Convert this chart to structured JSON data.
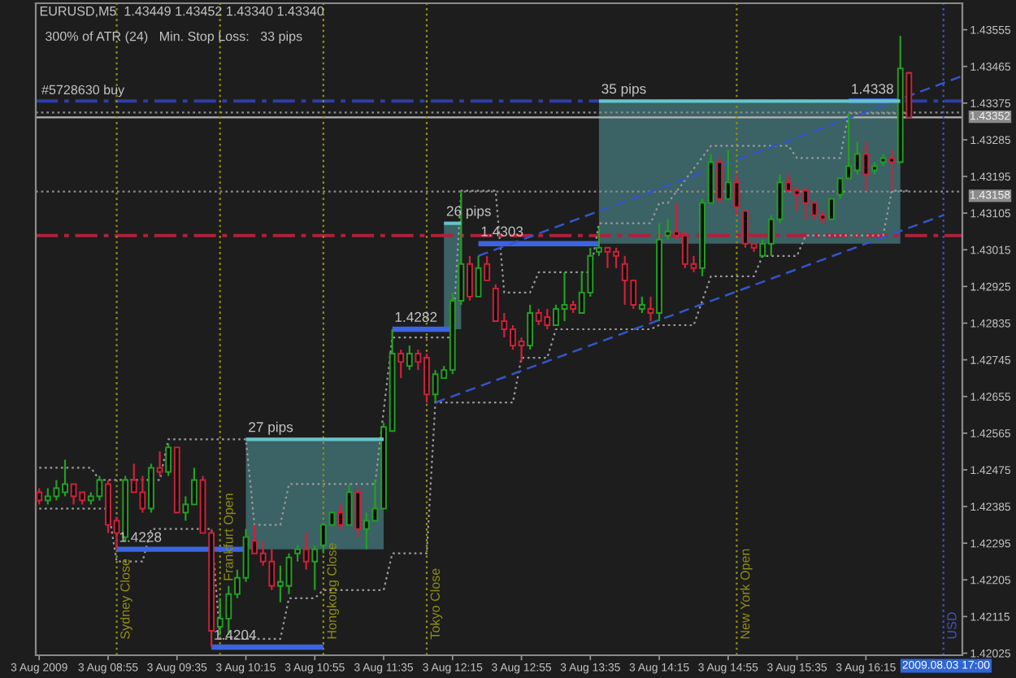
{
  "chart_data": {
    "type": "candlestick",
    "title": "EURUSD,M5  1.43449 1.43452 1.43340 1.43340",
    "subtitle": "300% of ATR (24)   Min. Stop Loss:   33 pips",
    "xlim": [
      "2009-08-03T08:13",
      "2009-08-03T17:11"
    ],
    "ylim": [
      1.4202,
      1.4362
    ],
    "xticks": [
      {
        "value": "2009-08-03T08:15",
        "label": "3 Aug 2009"
      },
      {
        "value": "2009-08-03T08:55",
        "label": "3 Aug 08:55"
      },
      {
        "value": "2009-08-03T09:35",
        "label": "3 Aug 09:35"
      },
      {
        "value": "2009-08-03T10:15",
        "label": "3 Aug 10:15"
      },
      {
        "value": "2009-08-03T10:55",
        "label": "3 Aug 10:55"
      },
      {
        "value": "2009-08-03T11:35",
        "label": "3 Aug 11:35"
      },
      {
        "value": "2009-08-03T12:15",
        "label": "3 Aug 12:15"
      },
      {
        "value": "2009-08-03T12:55",
        "label": "3 Aug 12:55"
      },
      {
        "value": "2009-08-03T13:35",
        "label": "3 Aug 13:35"
      },
      {
        "value": "2009-08-03T14:15",
        "label": "3 Aug 14:15"
      },
      {
        "value": "2009-08-03T14:55",
        "label": "3 Aug 14:55"
      },
      {
        "value": "2009-08-03T15:35",
        "label": "3 Aug 15:35"
      },
      {
        "value": "2009-08-03T16:15",
        "label": "3 Aug 16:15"
      }
    ],
    "yticks": [
      1.42025,
      1.42115,
      1.42205,
      1.42295,
      1.42385,
      1.42475,
      1.42565,
      1.42655,
      1.42745,
      1.42835,
      1.42925,
      1.43015,
      1.43105,
      1.43195,
      1.43285,
      1.43375,
      1.43465,
      1.43555
    ],
    "series": [
      {
        "type": "line",
        "name": "27 pips",
        "color": "#66c4c8",
        "line_style": "solid",
        "x": [
          "2009-08-03T10:15",
          "2009-08-03T11:35"
        ],
        "values": [
          1.4255,
          1.4255
        ],
        "lower": [
          1.4228,
          1.4228
        ],
        "upper": [
          1.4255,
          1.4255
        ]
      },
      {
        "type": "line",
        "name": "26 pips",
        "color": "#66c4c8",
        "line_style": "solid",
        "x": [
          "2009-08-03T12:10",
          "2009-08-03T12:20"
        ],
        "values": [
          1.4308,
          1.4308
        ],
        "lower": [
          1.4282,
          1.4282
        ],
        "upper": [
          1.4308,
          1.4308
        ]
      },
      {
        "type": "line",
        "name": "35 pips",
        "color": "#66c4c8",
        "line_style": "solid",
        "x": [
          "2009-08-03T13:40",
          "2009-08-03T16:35"
        ],
        "values": [
          1.4338,
          1.4338
        ],
        "lower": [
          1.4303,
          1.4303
        ],
        "upper": [
          1.4338,
          1.4338
        ]
      },
      {
        "type": "line",
        "color": "#9a9a9a",
        "line_style": "dotted",
        "x": [
          "2009-08-03T08:15",
          "2009-08-03T08:45",
          "2009-08-03T08:50",
          "2009-08-03T09:25",
          "2009-08-03T09:30",
          "2009-08-03T10:15",
          "2009-08-03T10:20",
          "2009-08-03T10:35",
          "2009-08-03T10:40",
          "2009-08-03T11:30",
          "2009-08-03T11:40",
          "2009-08-03T12:15",
          "2009-08-03T12:20",
          "2009-08-03T12:40",
          "2009-08-03T12:45",
          "2009-08-03T13:00",
          "2009-08-03T13:05",
          "2009-08-03T13:35",
          "2009-08-03T13:40",
          "2009-08-03T14:10",
          "2009-08-03T14:15",
          "2009-08-03T14:20",
          "2009-08-03T14:45",
          "2009-08-03T15:30",
          "2009-08-03T15:35",
          "2009-08-03T16:00",
          "2009-08-03T16:05",
          "2009-08-03T16:40"
        ],
        "values": [
          1.4248,
          1.4248,
          1.4245,
          1.4245,
          1.4255,
          1.4255,
          1.4234,
          1.4234,
          1.4244,
          1.4244,
          1.428,
          1.428,
          1.4316,
          1.4316,
          1.4291,
          1.4291,
          1.4296,
          1.4296,
          1.4308,
          1.4308,
          1.4313,
          1.4313,
          1.4327,
          1.4327,
          1.4324,
          1.4324,
          1.4335,
          1.4335
        ]
      },
      {
        "type": "line",
        "color": "#9a9a9a",
        "line_style": "dotted",
        "x": [
          "2009-08-03T08:15",
          "2009-08-03T08:55",
          "2009-08-03T09:00",
          "2009-08-03T09:15",
          "2009-08-03T09:20",
          "2009-08-03T09:55",
          "2009-08-03T10:00",
          "2009-08-03T10:35",
          "2009-08-03T10:40",
          "2009-08-03T10:55",
          "2009-08-03T11:00",
          "2009-08-03T11:35",
          "2009-08-03T11:40",
          "2009-08-03T12:00",
          "2009-08-03T12:05",
          "2009-08-03T12:50",
          "2009-08-03T12:55",
          "2009-08-03T13:10",
          "2009-08-03T13:15",
          "2009-08-03T14:10",
          "2009-08-03T14:15",
          "2009-08-03T14:35",
          "2009-08-03T14:45",
          "2009-08-03T15:10",
          "2009-08-03T15:15",
          "2009-08-03T15:35",
          "2009-08-03T15:40",
          "2009-08-03T16:25",
          "2009-08-03T16:30",
          "2009-08-03T16:40"
        ],
        "values": [
          1.4238,
          1.4238,
          1.4225,
          1.4225,
          1.4233,
          1.4233,
          1.4206,
          1.4206,
          1.4216,
          1.4216,
          1.4218,
          1.4218,
          1.4227,
          1.4227,
          1.4264,
          1.4264,
          1.4275,
          1.4275,
          1.4282,
          1.4282,
          1.4283,
          1.4283,
          1.4295,
          1.4295,
          1.43,
          1.43,
          1.4305,
          1.4305,
          1.4316,
          1.4316
        ]
      },
      {
        "type": "line",
        "color": "#3355cc",
        "line_style": "dashed",
        "x": [
          "2009-08-03T12:05",
          "2009-08-03T17:00"
        ],
        "values": [
          1.4264,
          1.431
        ]
      },
      {
        "type": "line",
        "color": "#3355cc",
        "line_style": "dashed",
        "x": [
          "2009-08-03T12:30",
          "2009-08-03T17:10"
        ],
        "values": [
          1.43,
          1.4344
        ]
      },
      {
        "type": "line",
        "name": "1.4228",
        "color": "#3c64e0",
        "line_style": "solid",
        "x": [
          "2009-08-03T09:00",
          "2009-08-03T10:15"
        ],
        "values": [
          1.4228,
          1.4228
        ]
      },
      {
        "type": "line",
        "name": "1.4204",
        "color": "#3c64e0",
        "line_style": "solid",
        "x": [
          "2009-08-03T09:55",
          "2009-08-03T11:00"
        ],
        "values": [
          1.4204,
          1.4204
        ]
      },
      {
        "type": "line",
        "name": "1.4282",
        "color": "#3c64e0",
        "line_style": "solid",
        "x": [
          "2009-08-03T11:40",
          "2009-08-03T12:15"
        ],
        "values": [
          1.4282,
          1.4282
        ]
      },
      {
        "type": "line",
        "name": "1.4303",
        "color": "#3c64e0",
        "line_style": "solid",
        "x": [
          "2009-08-03T12:30",
          "2009-08-03T13:40"
        ],
        "values": [
          1.4303,
          1.4303
        ]
      },
      {
        "type": "line",
        "name": "1.4338",
        "color": "#3c64e0",
        "line_style": "solid",
        "x": [
          "2009-08-03T16:05",
          "2009-08-03T16:35"
        ],
        "values": [
          1.4338,
          1.4338
        ]
      },
      {
        "x": [
          "2009-08-03T08:15",
          "2009-08-03T08:20",
          "2009-08-03T08:25",
          "2009-08-03T08:30",
          "2009-08-03T08:35",
          "2009-08-03T08:40",
          "2009-08-03T08:45",
          "2009-08-03T08:50",
          "2009-08-03T08:55",
          "2009-08-03T09:00",
          "2009-08-03T09:05",
          "2009-08-03T09:10",
          "2009-08-03T09:15",
          "2009-08-03T09:20",
          "2009-08-03T09:25",
          "2009-08-03T09:30",
          "2009-08-03T09:35",
          "2009-08-03T09:40",
          "2009-08-03T09:45",
          "2009-08-03T09:50",
          "2009-08-03T09:55",
          "2009-08-03T10:00",
          "2009-08-03T10:05",
          "2009-08-03T10:10",
          "2009-08-03T10:15",
          "2009-08-03T10:20",
          "2009-08-03T10:25",
          "2009-08-03T10:30",
          "2009-08-03T10:35",
          "2009-08-03T10:40",
          "2009-08-03T10:45",
          "2009-08-03T10:50",
          "2009-08-03T10:55",
          "2009-08-03T11:00",
          "2009-08-03T11:05",
          "2009-08-03T11:10",
          "2009-08-03T11:15",
          "2009-08-03T11:20",
          "2009-08-03T11:25",
          "2009-08-03T11:30",
          "2009-08-03T11:35",
          "2009-08-03T11:40",
          "2009-08-03T11:45",
          "2009-08-03T11:50",
          "2009-08-03T11:55",
          "2009-08-03T12:00",
          "2009-08-03T12:05",
          "2009-08-03T12:10",
          "2009-08-03T12:15",
          "2009-08-03T12:20",
          "2009-08-03T12:25",
          "2009-08-03T12:30",
          "2009-08-03T12:35",
          "2009-08-03T12:40",
          "2009-08-03T12:45",
          "2009-08-03T12:50",
          "2009-08-03T12:55",
          "2009-08-03T13:00",
          "2009-08-03T13:05",
          "2009-08-03T13:10",
          "2009-08-03T13:15",
          "2009-08-03T13:20",
          "2009-08-03T13:25",
          "2009-08-03T13:30",
          "2009-08-03T13:35",
          "2009-08-03T13:40",
          "2009-08-03T13:45",
          "2009-08-03T13:50",
          "2009-08-03T13:55",
          "2009-08-03T14:00",
          "2009-08-03T14:05",
          "2009-08-03T14:10",
          "2009-08-03T14:15",
          "2009-08-03T14:20",
          "2009-08-03T14:25",
          "2009-08-03T14:30",
          "2009-08-03T14:35",
          "2009-08-03T14:40",
          "2009-08-03T14:45",
          "2009-08-03T14:50",
          "2009-08-03T14:55",
          "2009-08-03T15:00",
          "2009-08-03T15:05",
          "2009-08-03T15:10",
          "2009-08-03T15:15",
          "2009-08-03T15:20",
          "2009-08-03T15:25",
          "2009-08-03T15:30",
          "2009-08-03T15:35",
          "2009-08-03T15:40",
          "2009-08-03T15:45",
          "2009-08-03T15:50",
          "2009-08-03T15:55",
          "2009-08-03T16:00",
          "2009-08-03T16:05",
          "2009-08-03T16:10",
          "2009-08-03T16:15",
          "2009-08-03T16:20",
          "2009-08-03T16:25",
          "2009-08-03T16:30",
          "2009-08-03T16:35",
          "2009-08-03T16:40"
        ],
        "ohlc": [
          [
            1.4242,
            1.4243,
            1.4239,
            1.424
          ],
          [
            1.424,
            1.4243,
            1.4239,
            1.4241
          ],
          [
            1.4241,
            1.4245,
            1.424,
            1.4243
          ],
          [
            1.4242,
            1.425,
            1.4241,
            1.4244
          ],
          [
            1.4244,
            1.4244,
            1.4239,
            1.4241
          ],
          [
            1.4242,
            1.4242,
            1.4239,
            1.424
          ],
          [
            1.424,
            1.4242,
            1.4239,
            1.4241
          ],
          [
            1.4241,
            1.4246,
            1.424,
            1.4245
          ],
          [
            1.4244,
            1.4245,
            1.4232,
            1.4234
          ],
          [
            1.4235,
            1.4236,
            1.4228,
            1.4232
          ],
          [
            1.4231,
            1.4246,
            1.423,
            1.4245
          ],
          [
            1.4245,
            1.4249,
            1.4242,
            1.4242
          ],
          [
            1.4242,
            1.4246,
            1.4237,
            1.4238
          ],
          [
            1.4238,
            1.4249,
            1.4237,
            1.4248
          ],
          [
            1.4248,
            1.4252,
            1.4246,
            1.4247
          ],
          [
            1.4247,
            1.4254,
            1.4246,
            1.4253
          ],
          [
            1.4253,
            1.4253,
            1.4237,
            1.4237
          ],
          [
            1.4237,
            1.4241,
            1.4235,
            1.4239
          ],
          [
            1.4239,
            1.4248,
            1.4239,
            1.4245
          ],
          [
            1.4245,
            1.4246,
            1.4232,
            1.4232
          ],
          [
            1.4232,
            1.4233,
            1.4204,
            1.4208
          ],
          [
            1.4209,
            1.4216,
            1.4207,
            1.4211
          ],
          [
            1.4211,
            1.4219,
            1.4207,
            1.4217
          ],
          [
            1.4217,
            1.4223,
            1.4216,
            1.4221
          ],
          [
            1.4221,
            1.4233,
            1.422,
            1.4231
          ],
          [
            1.423,
            1.4234,
            1.4227,
            1.4227
          ],
          [
            1.4227,
            1.423,
            1.4224,
            1.4225
          ],
          [
            1.4225,
            1.4228,
            1.4218,
            1.4219
          ],
          [
            1.4219,
            1.4224,
            1.4215,
            1.422
          ],
          [
            1.4219,
            1.4227,
            1.4217,
            1.4226
          ],
          [
            1.4227,
            1.4229,
            1.4225,
            1.4228
          ],
          [
            1.4228,
            1.4232,
            1.4223,
            1.4225
          ],
          [
            1.4225,
            1.4229,
            1.4218,
            1.4228
          ],
          [
            1.4229,
            1.4234,
            1.4227,
            1.4234
          ],
          [
            1.4234,
            1.4237,
            1.4234,
            1.4237
          ],
          [
            1.4237,
            1.4239,
            1.4233,
            1.4234
          ],
          [
            1.4234,
            1.4244,
            1.4234,
            1.4242
          ],
          [
            1.4242,
            1.4243,
            1.4231,
            1.4233
          ],
          [
            1.4233,
            1.4237,
            1.4228,
            1.4235
          ],
          [
            1.4235,
            1.4245,
            1.4235,
            1.4238
          ],
          [
            1.4238,
            1.4259,
            1.4238,
            1.4258
          ],
          [
            1.4257,
            1.4282,
            1.4257,
            1.4276
          ],
          [
            1.4276,
            1.4277,
            1.427,
            1.4274
          ],
          [
            1.4273,
            1.4278,
            1.4272,
            1.4276
          ],
          [
            1.4276,
            1.4277,
            1.4272,
            1.4274
          ],
          [
            1.4275,
            1.4276,
            1.4264,
            1.4266
          ],
          [
            1.4266,
            1.4272,
            1.4264,
            1.4271
          ],
          [
            1.427,
            1.4273,
            1.427,
            1.4272
          ],
          [
            1.4272,
            1.4291,
            1.4271,
            1.4289
          ],
          [
            1.4289,
            1.4316,
            1.4288,
            1.4298
          ],
          [
            1.4298,
            1.43,
            1.4289,
            1.429
          ],
          [
            1.429,
            1.43,
            1.429,
            1.4297
          ],
          [
            1.4298,
            1.43,
            1.4294,
            1.4294
          ],
          [
            1.4292,
            1.4293,
            1.4284,
            1.4284
          ],
          [
            1.4284,
            1.4286,
            1.428,
            1.4282
          ],
          [
            1.4282,
            1.4283,
            1.4277,
            1.4278
          ],
          [
            1.4279,
            1.428,
            1.4274,
            1.4278
          ],
          [
            1.4278,
            1.4288,
            1.4277,
            1.4286
          ],
          [
            1.4286,
            1.4287,
            1.4283,
            1.4284
          ],
          [
            1.4285,
            1.4287,
            1.4282,
            1.4283
          ],
          [
            1.4283,
            1.4288,
            1.4283,
            1.4287
          ],
          [
            1.4287,
            1.4296,
            1.4284,
            1.4288
          ],
          [
            1.4288,
            1.4289,
            1.4286,
            1.4287
          ],
          [
            1.4286,
            1.4296,
            1.4286,
            1.4291
          ],
          [
            1.4291,
            1.4302,
            1.429,
            1.43
          ],
          [
            1.4301,
            1.4307,
            1.43,
            1.4302
          ],
          [
            1.4302,
            1.4302,
            1.4297,
            1.4301
          ],
          [
            1.4301,
            1.4302,
            1.4297,
            1.43
          ],
          [
            1.4298,
            1.43,
            1.4288,
            1.4294
          ],
          [
            1.4294,
            1.4294,
            1.4287,
            1.4288
          ],
          [
            1.4287,
            1.429,
            1.4286,
            1.4288
          ],
          [
            1.4287,
            1.429,
            1.4284,
            1.4286
          ],
          [
            1.4286,
            1.4308,
            1.4284,
            1.4304
          ],
          [
            1.4305,
            1.4309,
            1.4304,
            1.4306
          ],
          [
            1.4306,
            1.4313,
            1.4304,
            1.4305
          ],
          [
            1.4305,
            1.4306,
            1.4297,
            1.4298
          ],
          [
            1.4298,
            1.43,
            1.4296,
            1.4297
          ],
          [
            1.4297,
            1.4314,
            1.4295,
            1.4313
          ],
          [
            1.4313,
            1.4325,
            1.4313,
            1.4323
          ],
          [
            1.4323,
            1.4324,
            1.4313,
            1.4314
          ],
          [
            1.4314,
            1.4326,
            1.4314,
            1.4318
          ],
          [
            1.4318,
            1.432,
            1.431,
            1.4312
          ],
          [
            1.4311,
            1.4311,
            1.4302,
            1.4303
          ],
          [
            1.4303,
            1.4303,
            1.4301,
            1.4302
          ],
          [
            1.43,
            1.4304,
            1.43,
            1.4303
          ],
          [
            1.4303,
            1.431,
            1.43,
            1.4309
          ],
          [
            1.4309,
            1.432,
            1.4308,
            1.4318
          ],
          [
            1.4318,
            1.432,
            1.4316,
            1.4316
          ],
          [
            1.4316,
            1.4317,
            1.4311,
            1.4315
          ],
          [
            1.4316,
            1.4317,
            1.4309,
            1.4313
          ],
          [
            1.4313,
            1.4313,
            1.4309,
            1.431
          ],
          [
            1.431,
            1.4311,
            1.4308,
            1.4309
          ],
          [
            1.4309,
            1.4314,
            1.4309,
            1.4314
          ],
          [
            1.4315,
            1.4319,
            1.4314,
            1.4319
          ],
          [
            1.4319,
            1.4335,
            1.4319,
            1.4322
          ],
          [
            1.4321,
            1.4328,
            1.432,
            1.4325
          ],
          [
            1.4325,
            1.4328,
            1.4316,
            1.432
          ],
          [
            1.4321,
            1.4323,
            1.432,
            1.4322
          ],
          [
            1.4323,
            1.4325,
            1.4322,
            1.4324
          ],
          [
            1.4324,
            1.4326,
            1.4316,
            1.4323
          ],
          [
            1.4323,
            1.4354,
            1.4323,
            1.4346
          ],
          [
            1.43449,
            1.43452,
            1.4334,
            1.4334
          ]
        ],
        "colors": [
          "#d0213a",
          "#22a022",
          "#22a022",
          "#22a022",
          "#d0213a",
          "#d0213a",
          "#22a022",
          "#22a022",
          "#d0213a",
          "#d0213a",
          "#22a022",
          "#d0213a",
          "#d0213a",
          "#22a022",
          "#d0213a",
          "#22a022",
          "#d0213a",
          "#22a022",
          "#22a022",
          "#d0213a",
          "#d0213a",
          "#22a022",
          "#22a022",
          "#22a022",
          "#22a022",
          "#d0213a",
          "#d0213a",
          "#d0213a",
          "#22a022",
          "#22a022",
          "#22a022",
          "#d0213a",
          "#22a022",
          "#22a022",
          "#22a022",
          "#d0213a",
          "#22a022",
          "#d0213a",
          "#22a022",
          "#22a022",
          "#22a022",
          "#22a022",
          "#d0213a",
          "#22a022",
          "#d0213a",
          "#d0213a",
          "#22a022",
          "#22a022",
          "#22a022",
          "#22a022",
          "#d0213a",
          "#22a022",
          "#d0213a",
          "#d0213a",
          "#d0213a",
          "#d0213a",
          "#d0213a",
          "#22a022",
          "#d0213a",
          "#d0213a",
          "#22a022",
          "#22a022",
          "#d0213a",
          "#22a022",
          "#22a022",
          "#22a022",
          "#d0213a",
          "#d0213a",
          "#d0213a",
          "#d0213a",
          "#22a022",
          "#d0213a",
          "#22a022",
          "#22a022",
          "#d0213a",
          "#d0213a",
          "#d0213a",
          "#22a022",
          "#22a022",
          "#d0213a",
          "#22a022",
          "#d0213a",
          "#d0213a",
          "#d0213a",
          "#22a022",
          "#22a022",
          "#22a022",
          "#d0213a",
          "#d0213a",
          "#d0213a",
          "#d0213a",
          "#d0213a",
          "#22a022",
          "#22a022",
          "#22a022",
          "#22a022",
          "#d0213a",
          "#22a022",
          "#22a022",
          "#d0213a",
          "#22a022",
          "#d0213a"
        ]
      }
    ],
    "ref_lines": [
      {
        "axis": "y",
        "value": 1.4338,
        "color": "#2c3ea8",
        "line_style": "dashed"
      },
      {
        "axis": "y",
        "value": 1.43352,
        "label": "1.43352",
        "color": "#8c8c8c",
        "line_style": "dotted"
      },
      {
        "axis": "y",
        "value": 1.4334,
        "color": "#b4b4b4",
        "line_style": "solid"
      },
      {
        "axis": "y",
        "value": 1.43158,
        "label": "1.43158",
        "color": "#8c8c8c",
        "line_style": "dotted"
      },
      {
        "axis": "y",
        "value": 1.4305,
        "color": "#b0203c",
        "line_style": "dashed"
      },
      {
        "axis": "x",
        "value": "2009-08-03T09:00",
        "label": "Sydney Close",
        "color": "#8f8f14",
        "line_style": "dotted"
      },
      {
        "axis": "x",
        "value": "2009-08-03T10:00",
        "label": "Frankfurt Open",
        "color": "#8f8f14",
        "line_style": "dotted"
      },
      {
        "axis": "x",
        "value": "2009-08-03T11:00",
        "label": "Hongkong Close",
        "color": "#8f8f14",
        "line_style": "dotted"
      },
      {
        "axis": "x",
        "value": "2009-08-03T12:00",
        "label": "Tokyo Close",
        "color": "#8f8f14",
        "line_style": "dotted"
      },
      {
        "axis": "x",
        "value": "2009-08-03T15:00",
        "label": "New York Open",
        "color": "#8f8f14",
        "line_style": "dotted"
      },
      {
        "axis": "x",
        "value": "2009-08-03T17:00",
        "label": "USD",
        "color": "#4055b8",
        "line_style": "dotted"
      }
    ],
    "annotations": [
      {
        "text": "#5728630 buy",
        "x": "2009-08-03T08:15",
        "y": 1.4338
      },
      "2009.08.03 17:00"
    ]
  }
}
